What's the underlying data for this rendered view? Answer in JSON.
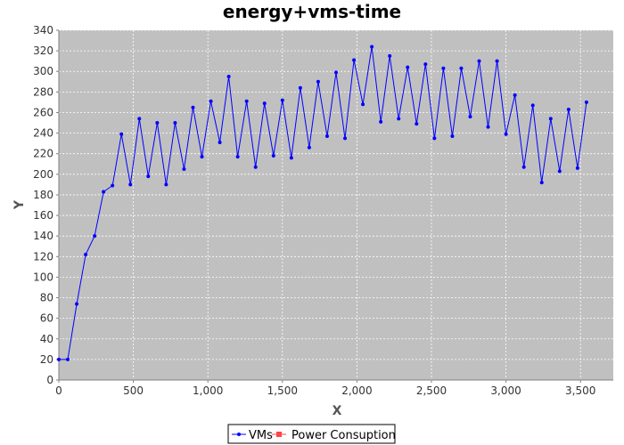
{
  "chart_data": {
    "type": "line",
    "title": "energy+vms-time",
    "xlabel": "X",
    "ylabel": "Y",
    "xlim": [
      0,
      3720
    ],
    "ylim": [
      0,
      340
    ],
    "x_ticks": [
      0,
      500,
      1000,
      1500,
      2000,
      2500,
      3000,
      3500
    ],
    "x_tick_labels": [
      "0",
      "500",
      "1,000",
      "1,500",
      "2,000",
      "2,500",
      "3,000",
      "3,500"
    ],
    "y_ticks": [
      0,
      20,
      40,
      60,
      80,
      100,
      120,
      140,
      160,
      180,
      200,
      220,
      240,
      260,
      280,
      300,
      320,
      340
    ],
    "y_tick_labels": [
      "0",
      "20",
      "40",
      "60",
      "80",
      "100",
      "120",
      "140",
      "160",
      "180",
      "200",
      "220",
      "240",
      "260",
      "280",
      "300",
      "320",
      "340"
    ],
    "grid": true,
    "legend_position": "bottom-center",
    "series": [
      {
        "name": "VMs",
        "color": "#0000ff",
        "marker": "circle",
        "x": [
          0,
          60,
          120,
          180,
          240,
          300,
          360,
          420,
          480,
          540,
          600,
          660,
          720,
          780,
          840,
          900,
          960,
          1020,
          1080,
          1140,
          1200,
          1260,
          1320,
          1380,
          1440,
          1500,
          1560,
          1620,
          1680,
          1740,
          1800,
          1860,
          1920,
          1980,
          2040,
          2100,
          2160,
          2220,
          2280,
          2340,
          2400,
          2460,
          2520,
          2580,
          2640,
          2700,
          2760,
          2820,
          2880,
          2940,
          3000,
          3060,
          3120,
          3180,
          3240,
          3300,
          3360,
          3420,
          3480,
          3540
        ],
        "values": [
          20,
          20,
          74,
          122,
          140,
          183,
          189,
          239,
          190,
          254,
          198,
          250,
          190,
          250,
          205,
          265,
          217,
          271,
          231,
          295,
          217,
          271,
          207,
          269,
          218,
          272,
          216,
          284,
          226,
          290,
          237,
          299,
          235,
          311,
          268,
          324,
          251,
          315,
          254,
          304,
          249,
          307,
          235,
          303,
          237,
          303,
          256,
          310,
          246,
          310,
          239,
          277,
          207,
          267,
          192,
          254,
          203,
          263,
          206,
          270
        ]
      },
      {
        "name": "Power Consuption",
        "color": "#ff4444",
        "marker": "square",
        "x": [],
        "values": []
      }
    ]
  }
}
